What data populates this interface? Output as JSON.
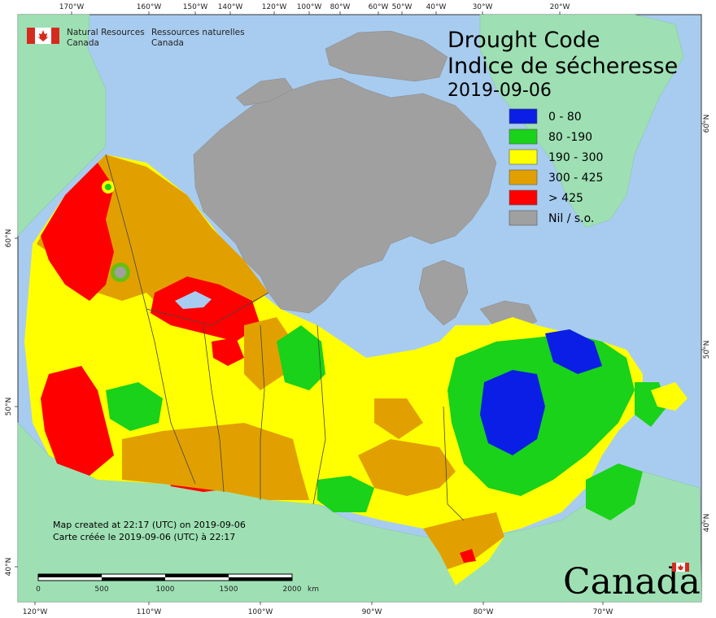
{
  "title_en": "Drought Code",
  "title_fr": "Indice de sécheresse",
  "date": "2019-09-06",
  "org": {
    "en_line1": "Natural Resources",
    "en_line2": "Canada",
    "fr_line1": "Ressources naturelles",
    "fr_line2": "Canada"
  },
  "legend": [
    {
      "label": "0 - 80",
      "color": "#0a1ee6"
    },
    {
      "label": "80 -190",
      "color": "#19d219"
    },
    {
      "label": "190 - 300",
      "color": "#ffff00"
    },
    {
      "label": "300 - 425",
      "color": "#e1a000"
    },
    {
      "label": "> 425",
      "color": "#ff0000"
    },
    {
      "label": "Nil / s.o.",
      "color": "#a0a0a0"
    }
  ],
  "credit": {
    "en": "Map created at 22:17 (UTC) on 2019-09-06",
    "fr": "Carte créée le 2019-09-06 (UTC) à 22:17"
  },
  "scale_bar": {
    "labels": [
      "0",
      "500",
      "1000",
      "1500",
      "2000"
    ],
    "unit": "km"
  },
  "top_ticks": [
    "170°W",
    "160°W",
    "150°W",
    "140°W",
    "120°W",
    "100°W",
    "80°W",
    "60°W",
    "50°W",
    "40°W",
    "30°W",
    "20°W"
  ],
  "bottom_ticks": [
    "120°W",
    "110°W",
    "100°W",
    "90°W",
    "80°W",
    "70°W"
  ],
  "left_ticks": [
    "60°N",
    "50°N",
    "40°N"
  ],
  "right_ticks": [
    "60°N",
    "50°N",
    "40°N"
  ],
  "wordmark": "Canada",
  "colors": {
    "ocean": "#a8ccf0",
    "land_other": "#9ee0b4",
    "arctic_grey": "#a0a0a0",
    "border": "#555555"
  }
}
